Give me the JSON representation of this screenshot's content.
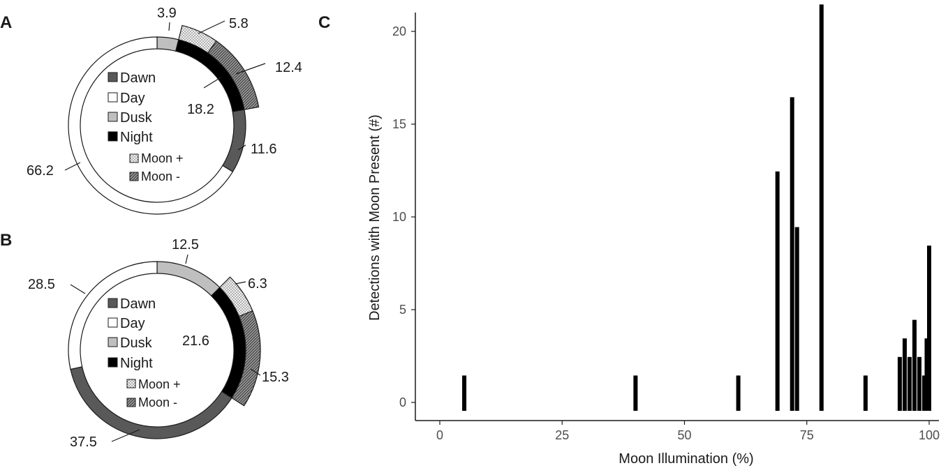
{
  "panels": {
    "a": "A",
    "b": "B",
    "c": "C"
  },
  "colors": {
    "dawn": "#595959",
    "day": "#ffffff",
    "dusk": "#bfbfbf",
    "night": "#000000",
    "outline": "#1a1a1a"
  },
  "legend": {
    "dawn": "Dawn",
    "day": "Day",
    "dusk": "Dusk",
    "night": "Night",
    "moon_plus": "Moon +",
    "moon_minus": "Moon -"
  },
  "chart_data": [
    {
      "type": "pie",
      "panel": "A",
      "inner_ring": [
        {
          "name": "Dusk",
          "value": 3.9
        },
        {
          "name": "Night",
          "value": 18.2
        },
        {
          "name": "Dawn",
          "value": 11.6
        },
        {
          "name": "Day",
          "value": 66.2
        }
      ],
      "outer_ring": [
        {
          "name": "Moon +",
          "value": 5.8
        },
        {
          "name": "Moon -",
          "value": 12.4
        }
      ],
      "labels": {
        "dusk": "3.9",
        "moon_plus": "5.8",
        "moon_minus": "12.4",
        "night": "18.2",
        "dawn": "11.6",
        "day": "66.2"
      }
    },
    {
      "type": "pie",
      "panel": "B",
      "inner_ring": [
        {
          "name": "Dusk",
          "value": 12.5
        },
        {
          "name": "Night",
          "value": 21.6
        },
        {
          "name": "Dawn",
          "value": 37.5
        },
        {
          "name": "Day",
          "value": 28.5
        }
      ],
      "outer_ring": [
        {
          "name": "Moon +",
          "value": 6.3
        },
        {
          "name": "Moon -",
          "value": 15.3
        }
      ],
      "labels": {
        "dusk": "12.5",
        "moon_plus": "6.3",
        "moon_minus": "15.3",
        "night": "21.6",
        "dawn": "37.5",
        "day": "28.5"
      }
    },
    {
      "type": "bar",
      "panel": "C",
      "xlabel": "Moon Illumination (%)",
      "ylabel": "Detections with Moon Present (#)",
      "xlim": [
        -4,
        100
      ],
      "ylim": [
        0,
        22
      ],
      "xticks": [
        0,
        25,
        50,
        75,
        100
      ],
      "yticks": [
        0,
        5,
        10,
        15,
        20
      ],
      "x": [
        5,
        40,
        61,
        69,
        72,
        73,
        78,
        87,
        94,
        95,
        96,
        97,
        98,
        99,
        99.5,
        100
      ],
      "values": [
        1,
        1,
        1,
        12,
        16,
        9,
        21,
        1,
        2,
        3,
        2,
        4,
        2,
        1,
        3,
        8
      ]
    }
  ]
}
